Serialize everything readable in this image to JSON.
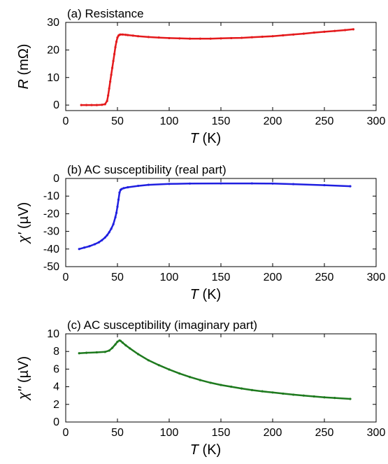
{
  "chart_data": [
    {
      "type": "line",
      "title": "(a) Resistance",
      "ylabel_symbol": "R",
      "ylabel_unit": " (mΩ)",
      "xlabel_symbol": "T",
      "xlabel_unit": " (K)",
      "xlim": [
        0,
        300
      ],
      "ylim": [
        -2,
        30
      ],
      "xticks": [
        0,
        50,
        100,
        150,
        200,
        250,
        300
      ],
      "yticks": [
        0,
        10,
        20,
        30
      ],
      "grid": false,
      "series": [
        {
          "color": "#e41a1c",
          "x": [
            15,
            20,
            25,
            30,
            35,
            38,
            40,
            41,
            42,
            43,
            44,
            45,
            46,
            47,
            48,
            49,
            50,
            51,
            52,
            53,
            55,
            58,
            60,
            65,
            70,
            80,
            90,
            100,
            110,
            120,
            130,
            140,
            150,
            160,
            170,
            180,
            190,
            200,
            210,
            220,
            230,
            240,
            250,
            260,
            270,
            278
          ],
          "y": [
            0,
            0,
            0,
            0,
            0.1,
            0.3,
            1.5,
            3.5,
            6,
            8.5,
            11,
            13.5,
            16,
            18.5,
            21,
            23,
            24.5,
            25.2,
            25.5,
            25.6,
            25.6,
            25.5,
            25.4,
            25.2,
            25.0,
            24.7,
            24.5,
            24.3,
            24.2,
            24.1,
            24.1,
            24.1,
            24.2,
            24.3,
            24.4,
            24.6,
            24.8,
            25.0,
            25.3,
            25.6,
            25.9,
            26.3,
            26.6,
            26.9,
            27.2,
            27.5
          ]
        }
      ]
    },
    {
      "type": "line",
      "title": "(b) AC susceptibility (real part)",
      "ylabel_symbol": "χ'",
      "ylabel_unit": " (µV)",
      "xlabel_symbol": "T",
      "xlabel_unit": " (K)",
      "xlim": [
        0,
        300
      ],
      "ylim": [
        -50,
        0
      ],
      "xticks": [
        0,
        50,
        100,
        150,
        200,
        250,
        300
      ],
      "yticks": [
        -50,
        -40,
        -30,
        -20,
        -10,
        0
      ],
      "grid": false,
      "series": [
        {
          "color": "#1f1fe0",
          "x": [
            13,
            18,
            23,
            28,
            32,
            35,
            38,
            40,
            42,
            44,
            46,
            48,
            49,
            50,
            51,
            52,
            53,
            54,
            56,
            60,
            70,
            80,
            100,
            120,
            150,
            180,
            200,
            220,
            250,
            275
          ],
          "y": [
            -40,
            -39.2,
            -38.4,
            -37.3,
            -36.2,
            -35.0,
            -33.5,
            -32.2,
            -30.5,
            -28.5,
            -26,
            -22,
            -19.5,
            -16,
            -12,
            -8,
            -6.5,
            -6.0,
            -5.5,
            -5.0,
            -4.2,
            -3.6,
            -3.1,
            -2.9,
            -2.8,
            -2.8,
            -2.9,
            -3.2,
            -3.8,
            -4.4
          ]
        }
      ]
    },
    {
      "type": "line",
      "title": "(c) AC susceptibility (imaginary part)",
      "ylabel_symbol": "χ''",
      "ylabel_unit": " (µV)",
      "xlabel_symbol": "T",
      "xlabel_unit": " (K)",
      "xlim": [
        0,
        300
      ],
      "ylim": [
        0,
        10
      ],
      "xticks": [
        0,
        50,
        100,
        150,
        200,
        250,
        300
      ],
      "yticks": [
        0,
        2,
        4,
        6,
        8,
        10
      ],
      "grid": false,
      "series": [
        {
          "color": "#1e7a1e",
          "x": [
            13,
            20,
            30,
            38,
            42,
            45,
            48,
            50,
            52,
            53,
            55,
            58,
            62,
            70,
            80,
            90,
            100,
            110,
            120,
            130,
            140,
            150,
            160,
            170,
            180,
            190,
            200,
            210,
            220,
            230,
            240,
            250,
            260,
            275
          ],
          "y": [
            7.8,
            7.85,
            7.9,
            7.95,
            8.1,
            8.4,
            8.8,
            9.1,
            9.25,
            9.2,
            9.0,
            8.7,
            8.35,
            7.7,
            7.0,
            6.45,
            5.95,
            5.5,
            5.1,
            4.75,
            4.45,
            4.2,
            4.0,
            3.8,
            3.62,
            3.48,
            3.35,
            3.22,
            3.1,
            3.0,
            2.9,
            2.8,
            2.73,
            2.62
          ]
        }
      ]
    }
  ]
}
